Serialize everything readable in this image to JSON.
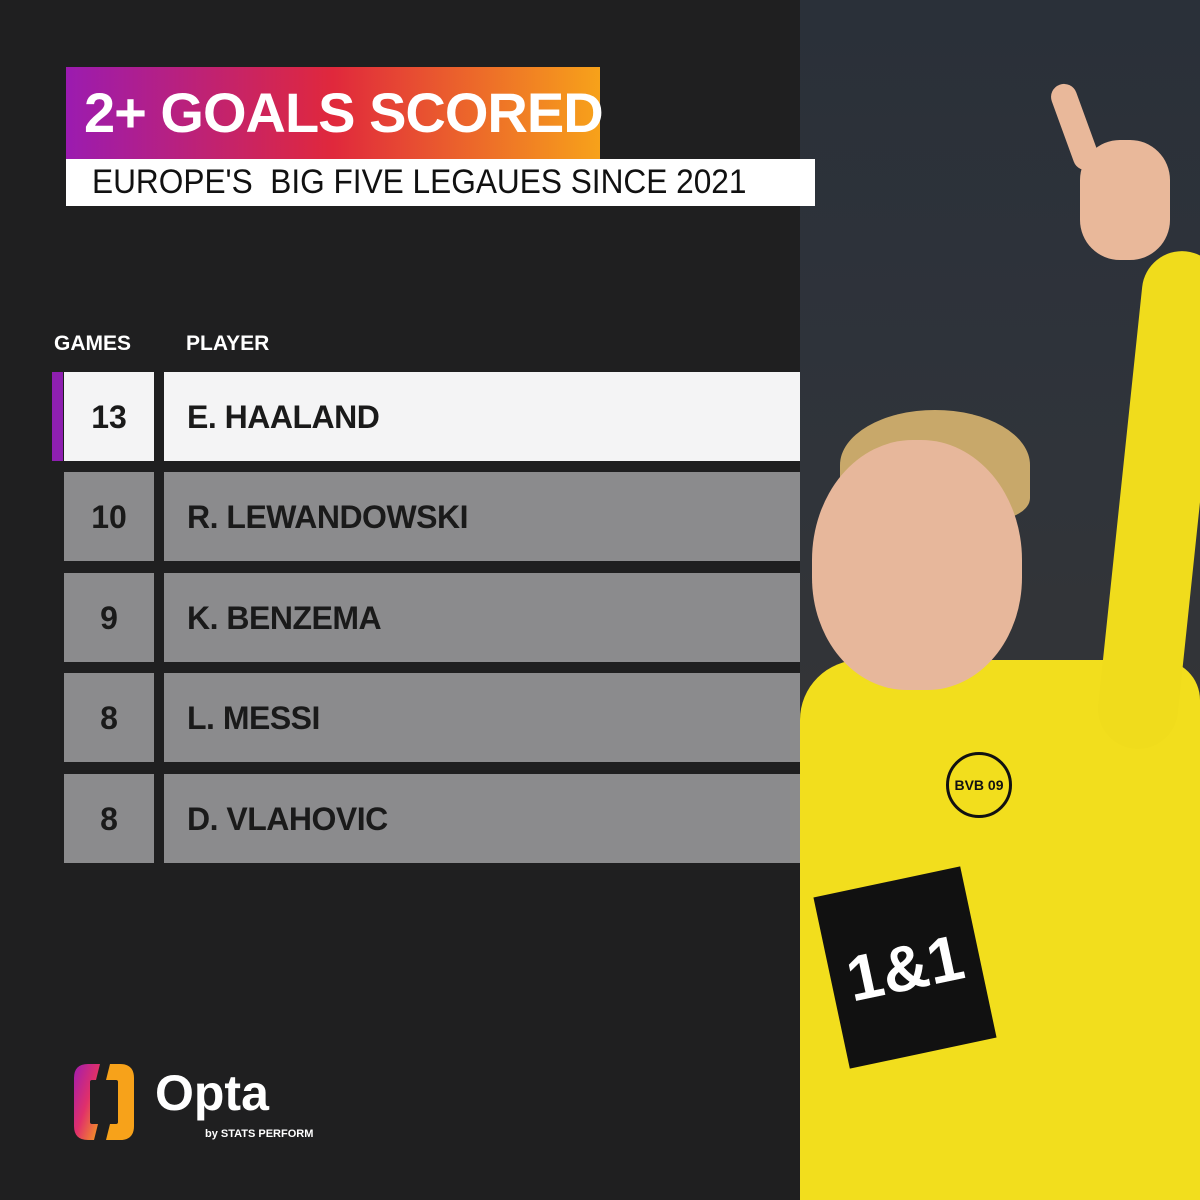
{
  "title": "2+ GOALS SCORED",
  "subtitle": "EUROPE'S  BIG FIVE LEGAUES SINCE 2021",
  "colors": {
    "gradient_start": "#9b1bb0",
    "gradient_mid": "#e0283c",
    "gradient_end": "#f7a21a",
    "highlight_bar": "#8e1fb0",
    "row_gray": "#8b8b8d",
    "background": "#1f1f20"
  },
  "chart_data": {
    "type": "table",
    "columns": [
      "GAMES",
      "PLAYER"
    ],
    "rows": [
      {
        "games": "13",
        "player": "E. HAALAND",
        "highlighted": true
      },
      {
        "games": "10",
        "player": "R. LEWANDOWSKI",
        "highlighted": false
      },
      {
        "games": "9",
        "player": "K. BENZEMA",
        "highlighted": false
      },
      {
        "games": "8",
        "player": "L. MESSI",
        "highlighted": false
      },
      {
        "games": "8",
        "player": "D. VLAHOVIC",
        "highlighted": false
      }
    ]
  },
  "photo": {
    "sponsor": "1&1",
    "crest": "BVB 09"
  },
  "brand": {
    "name": "Opta",
    "tagline": "by STATS PERFORM"
  }
}
